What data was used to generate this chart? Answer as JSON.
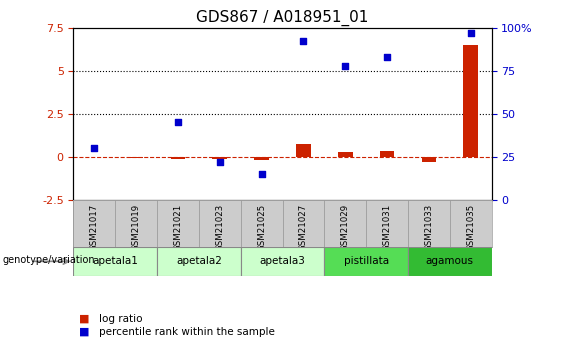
{
  "title": "GDS867 / A018951_01",
  "samples": [
    "GSM21017",
    "GSM21019",
    "GSM21021",
    "GSM21023",
    "GSM21025",
    "GSM21027",
    "GSM21029",
    "GSM21031",
    "GSM21033",
    "GSM21035"
  ],
  "log_ratio": [
    0.0,
    -0.05,
    -0.12,
    -0.12,
    -0.18,
    0.75,
    0.28,
    0.32,
    -0.28,
    6.5
  ],
  "pct_rank": [
    30,
    null,
    45,
    22,
    15,
    92,
    78,
    83,
    null,
    97
  ],
  "groups": [
    {
      "label": "apetala1",
      "samples": [
        0,
        1
      ],
      "color": "#ccffcc"
    },
    {
      "label": "apetala2",
      "samples": [
        2,
        3
      ],
      "color": "#ccffcc"
    },
    {
      "label": "apetala3",
      "samples": [
        4,
        5
      ],
      "color": "#ccffcc"
    },
    {
      "label": "pistillata",
      "samples": [
        6,
        7
      ],
      "color": "#55dd55"
    },
    {
      "label": "agamous",
      "samples": [
        8,
        9
      ],
      "color": "#33bb33"
    }
  ],
  "ylim_left": [
    -2.5,
    7.5
  ],
  "ylim_right": [
    0,
    100
  ],
  "left_ticks": [
    -2.5,
    0.0,
    2.5,
    5.0,
    7.5
  ],
  "right_ticks": [
    0,
    25,
    50,
    75,
    100
  ],
  "bar_color_red": "#cc2200",
  "bar_color_blue": "#0000cc",
  "background_plot": "#ffffff",
  "background_figure": "#ffffff",
  "tick_color_left": "#cc2200",
  "tick_color_right": "#0000cc",
  "title_fontsize": 11,
  "group_box_gray": "#cccccc",
  "group_box_edge": "#999999"
}
